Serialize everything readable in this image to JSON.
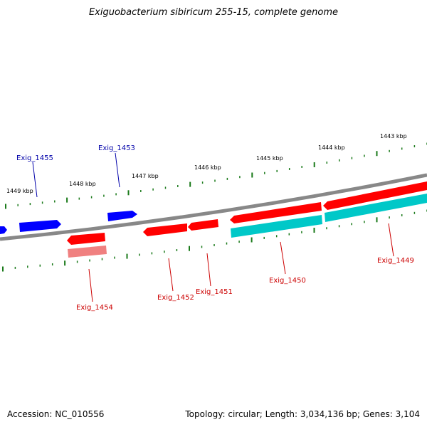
{
  "title": "Exiguobacterium sibiricum 255-15, complete genome",
  "footer": {
    "accession": "Accession: NC_010556",
    "summary": "Topology: circular; Length: 3,034,136 bp; Genes: 3,104"
  },
  "ticks": {
    "labels": [
      "1443 kbp",
      "1444 kbp",
      "1445 kbp",
      "1446 kbp",
      "1447 kbp",
      "1448 kbp",
      "1449 kbp"
    ]
  },
  "genes": [
    {
      "label": "Exig_1449",
      "strand": "minus",
      "color": "#ff0000"
    },
    {
      "label": "Exig_1450",
      "strand": "minus",
      "color": "#ff0000"
    },
    {
      "label": "Exig_1451",
      "strand": "minus",
      "color": "#ff0000"
    },
    {
      "label": "Exig_1452",
      "strand": "minus",
      "color": "#ff0000"
    },
    {
      "label": "Exig_1453",
      "strand": "plus",
      "color": "#0000ff"
    },
    {
      "label": "Exig_1454",
      "strand": "minus",
      "color": "#ff0000"
    },
    {
      "label": "Exig_1455",
      "strand": "plus",
      "color": "#0000ff"
    }
  ],
  "colors": {
    "backbone": "#808080",
    "tick": "#1a7a1a",
    "plus_gene": "#0000ff",
    "minus_gene": "#ff0000",
    "cds": "#00c8c8",
    "rna": "#f08080",
    "plus_label": "#0000aa",
    "minus_label": "#cc0000"
  }
}
